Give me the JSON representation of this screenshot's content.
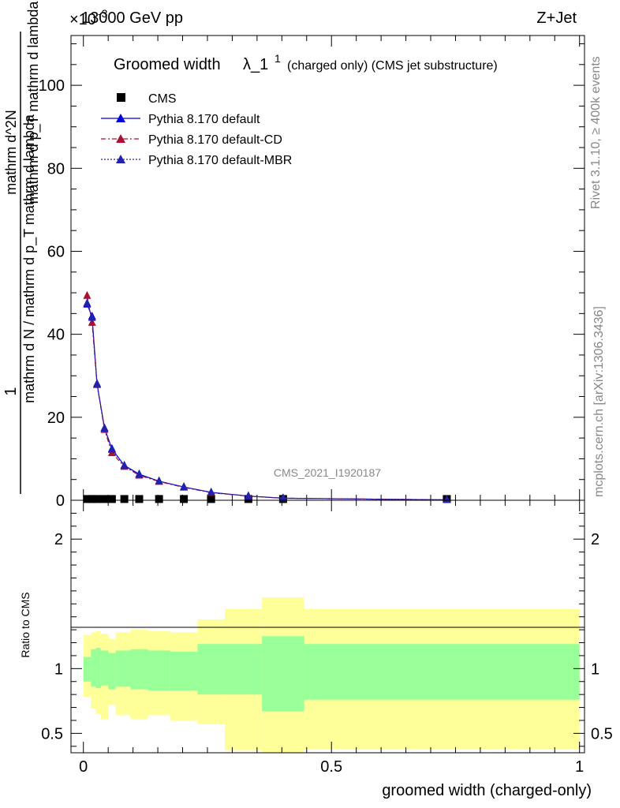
{
  "header": {
    "energy_label": "13000 GeV pp",
    "process_label": "Z+Jet",
    "exponent_label": "×10",
    "exponent_power": "-3"
  },
  "side_labels": {
    "rivet": "Rivet 3.1.10, ≥ 400k events",
    "mcplots": "mcplots.cern.ch [arXiv:1306.3436]"
  },
  "watermark": "CMS_2021_I1920187",
  "chart_data": [
    {
      "type": "line",
      "title": "Groomed width",
      "title_symbol": "λ_1",
      "title_superscript": "1",
      "subtitle": "(charged only) (CMS jet substructure)",
      "ylabel_line1": "1",
      "ylabel_line2": "mathrm d N / mathrm d p_T mathrm d lambda",
      "ylabel_numerator": "mathrm d^2N",
      "ylabel_denominator": "mathrm d p_T mathrm d lambda",
      "xlabel": "groomed width (charged-only)",
      "xlim": [
        -0.025,
        1.01
      ],
      "ylim": [
        0,
        112
      ],
      "yticks": [
        0,
        20,
        40,
        60,
        80,
        100
      ],
      "xticks": [
        "0",
        "0.5",
        "1"
      ],
      "legend_position": "top-left",
      "legend": [
        {
          "name": "CMS",
          "color": "#000000",
          "marker": "square",
          "line": "none"
        },
        {
          "name": "Pythia 8.170 default",
          "color": "#0000dd",
          "marker": "triangle",
          "line": "solid"
        },
        {
          "name": "Pythia 8.170 default-CD",
          "color": "#aa1133",
          "marker": "triangle",
          "line": "dashdot"
        },
        {
          "name": "Pythia 8.170 default-MBR",
          "color": "#2222aa",
          "marker": "triangle",
          "line": "dotted"
        }
      ],
      "x": [
        0.0075,
        0.0175,
        0.0275,
        0.0425,
        0.0575,
        0.0825,
        0.1125,
        0.1525,
        0.2025,
        0.2575,
        0.3325,
        0.4025,
        0.7325
      ],
      "series": [
        {
          "name": "CMS",
          "values": [
            0.3,
            0.3,
            0.3,
            0.3,
            0.3,
            0.3,
            0.3,
            0.3,
            0.3,
            0.3,
            0.3,
            0.3,
            0.3
          ]
        },
        {
          "name": "Pythia 8.170 default",
          "values": [
            47.2,
            44.3,
            28.1,
            17.4,
            12.4,
            8.4,
            6.3,
            4.6,
            3.2,
            1.9,
            1.0,
            0.5,
            0.1
          ]
        },
        {
          "name": "Pythia 8.170 default-CD",
          "values": [
            49.3,
            42.8,
            27.8,
            17.0,
            11.4,
            8.1,
            6.0,
            4.5,
            3.1,
            1.8,
            1.0,
            0.5,
            0.1
          ]
        },
        {
          "name": "Pythia 8.170 default-MBR",
          "values": [
            47.5,
            44.0,
            28.0,
            17.3,
            12.2,
            8.3,
            6.2,
            4.6,
            3.2,
            1.9,
            1.0,
            0.5,
            0.1
          ]
        }
      ]
    },
    {
      "type": "area",
      "ylabel": "Ratio to CMS",
      "ylim": [
        0.35,
        2.3
      ],
      "yticks": [
        "0.5",
        "1",
        "2"
      ],
      "reference_line": 1,
      "bins": [
        0,
        0.015,
        0.025,
        0.035,
        0.05,
        0.065,
        0.095,
        0.13,
        0.175,
        0.23,
        0.285,
        0.36,
        0.445,
        1.0
      ],
      "band_stat_low": [
        0.9,
        0.86,
        0.85,
        0.87,
        0.84,
        0.86,
        0.84,
        0.83,
        0.83,
        0.8,
        0.8,
        0.67,
        0.76
      ],
      "band_stat_high": [
        1.09,
        1.15,
        1.16,
        1.14,
        1.12,
        1.14,
        1.15,
        1.14,
        1.13,
        1.19,
        1.19,
        1.25,
        1.19
      ],
      "band_total_low": [
        0.78,
        0.69,
        0.65,
        0.61,
        0.72,
        0.64,
        0.61,
        0.64,
        0.6,
        0.57,
        0.37,
        0.35,
        0.38
      ],
      "band_total_high": [
        1.26,
        1.28,
        1.29,
        1.27,
        1.23,
        1.28,
        1.3,
        1.29,
        1.28,
        1.38,
        1.46,
        1.55,
        1.46
      ],
      "band_stat_color": "#99ff99",
      "band_total_color": "#ffff99"
    }
  ]
}
